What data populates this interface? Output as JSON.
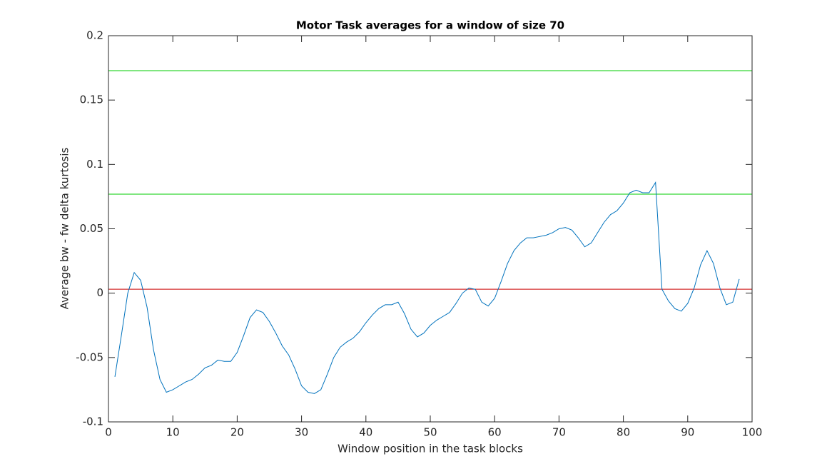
{
  "chart_data": {
    "type": "line",
    "title": "Motor Task averages for a window of size 70",
    "x_label": "Window position in the task blocks",
    "y_label": "Average bw - fw delta kurtosis",
    "x": [
      1,
      2,
      3,
      4,
      5,
      6,
      7,
      8,
      9,
      10,
      11,
      12,
      13,
      14,
      15,
      16,
      17,
      18,
      19,
      20,
      21,
      22,
      23,
      24,
      25,
      26,
      27,
      28,
      29,
      30,
      31,
      32,
      33,
      34,
      35,
      36,
      37,
      38,
      39,
      40,
      41,
      42,
      43,
      44,
      45,
      46,
      47,
      48,
      49,
      50,
      51,
      52,
      53,
      54,
      55,
      56,
      57,
      58,
      59,
      60,
      61,
      62,
      63,
      64,
      65,
      66,
      67,
      68,
      69,
      70,
      71,
      72,
      73,
      74,
      75,
      76,
      77,
      78,
      79,
      80,
      81,
      82,
      83,
      84,
      85,
      86,
      87,
      88,
      89,
      90,
      91,
      92,
      93,
      94,
      95,
      96,
      97,
      98
    ],
    "series": [
      {
        "color": "#0072bd",
        "values": [
          -0.065,
          -0.033,
          0.0,
          0.016,
          0.01,
          -0.011,
          -0.044,
          -0.067,
          -0.077,
          -0.075,
          -0.072,
          -0.069,
          -0.067,
          -0.063,
          -0.058,
          -0.056,
          -0.052,
          -0.053,
          -0.053,
          -0.046,
          -0.033,
          -0.019,
          -0.013,
          -0.015,
          -0.022,
          -0.031,
          -0.041,
          -0.048,
          -0.059,
          -0.072,
          -0.077,
          -0.078,
          -0.075,
          -0.063,
          -0.05,
          -0.042,
          -0.038,
          -0.035,
          -0.03,
          -0.023,
          -0.017,
          -0.012,
          -0.009,
          -0.009,
          -0.007,
          -0.016,
          -0.028,
          -0.034,
          -0.031,
          -0.025,
          -0.021,
          -0.018,
          -0.015,
          -0.008,
          0.0,
          0.004,
          0.003,
          -0.007,
          -0.01,
          -0.004,
          0.009,
          0.023,
          0.033,
          0.039,
          0.043,
          0.043,
          0.044,
          0.045,
          0.047,
          0.05,
          0.051,
          0.049,
          0.043,
          0.036,
          0.039,
          0.047,
          0.055,
          0.061,
          0.064,
          0.07,
          0.078,
          0.08,
          0.078,
          0.078,
          0.086,
          0.003,
          -0.006,
          -0.012,
          -0.014,
          -0.008,
          0.004,
          0.022,
          0.033,
          0.023,
          0.004,
          -0.009,
          -0.007,
          0.011
        ]
      }
    ],
    "hlines": [
      {
        "value": 0.1728,
        "color": "#00cc00"
      },
      {
        "value": 0.0769,
        "color": "#00cc00"
      },
      {
        "value": 0.0031,
        "color": "#cc0000"
      }
    ],
    "xlim": [
      0,
      100
    ],
    "xticks": [
      0,
      10,
      20,
      30,
      40,
      50,
      60,
      70,
      80,
      90,
      100
    ],
    "ylim": [
      -0.1,
      0.2
    ],
    "yticks": [
      -0.1,
      -0.05,
      0,
      0.05,
      0.1,
      0.15,
      0.2
    ]
  }
}
